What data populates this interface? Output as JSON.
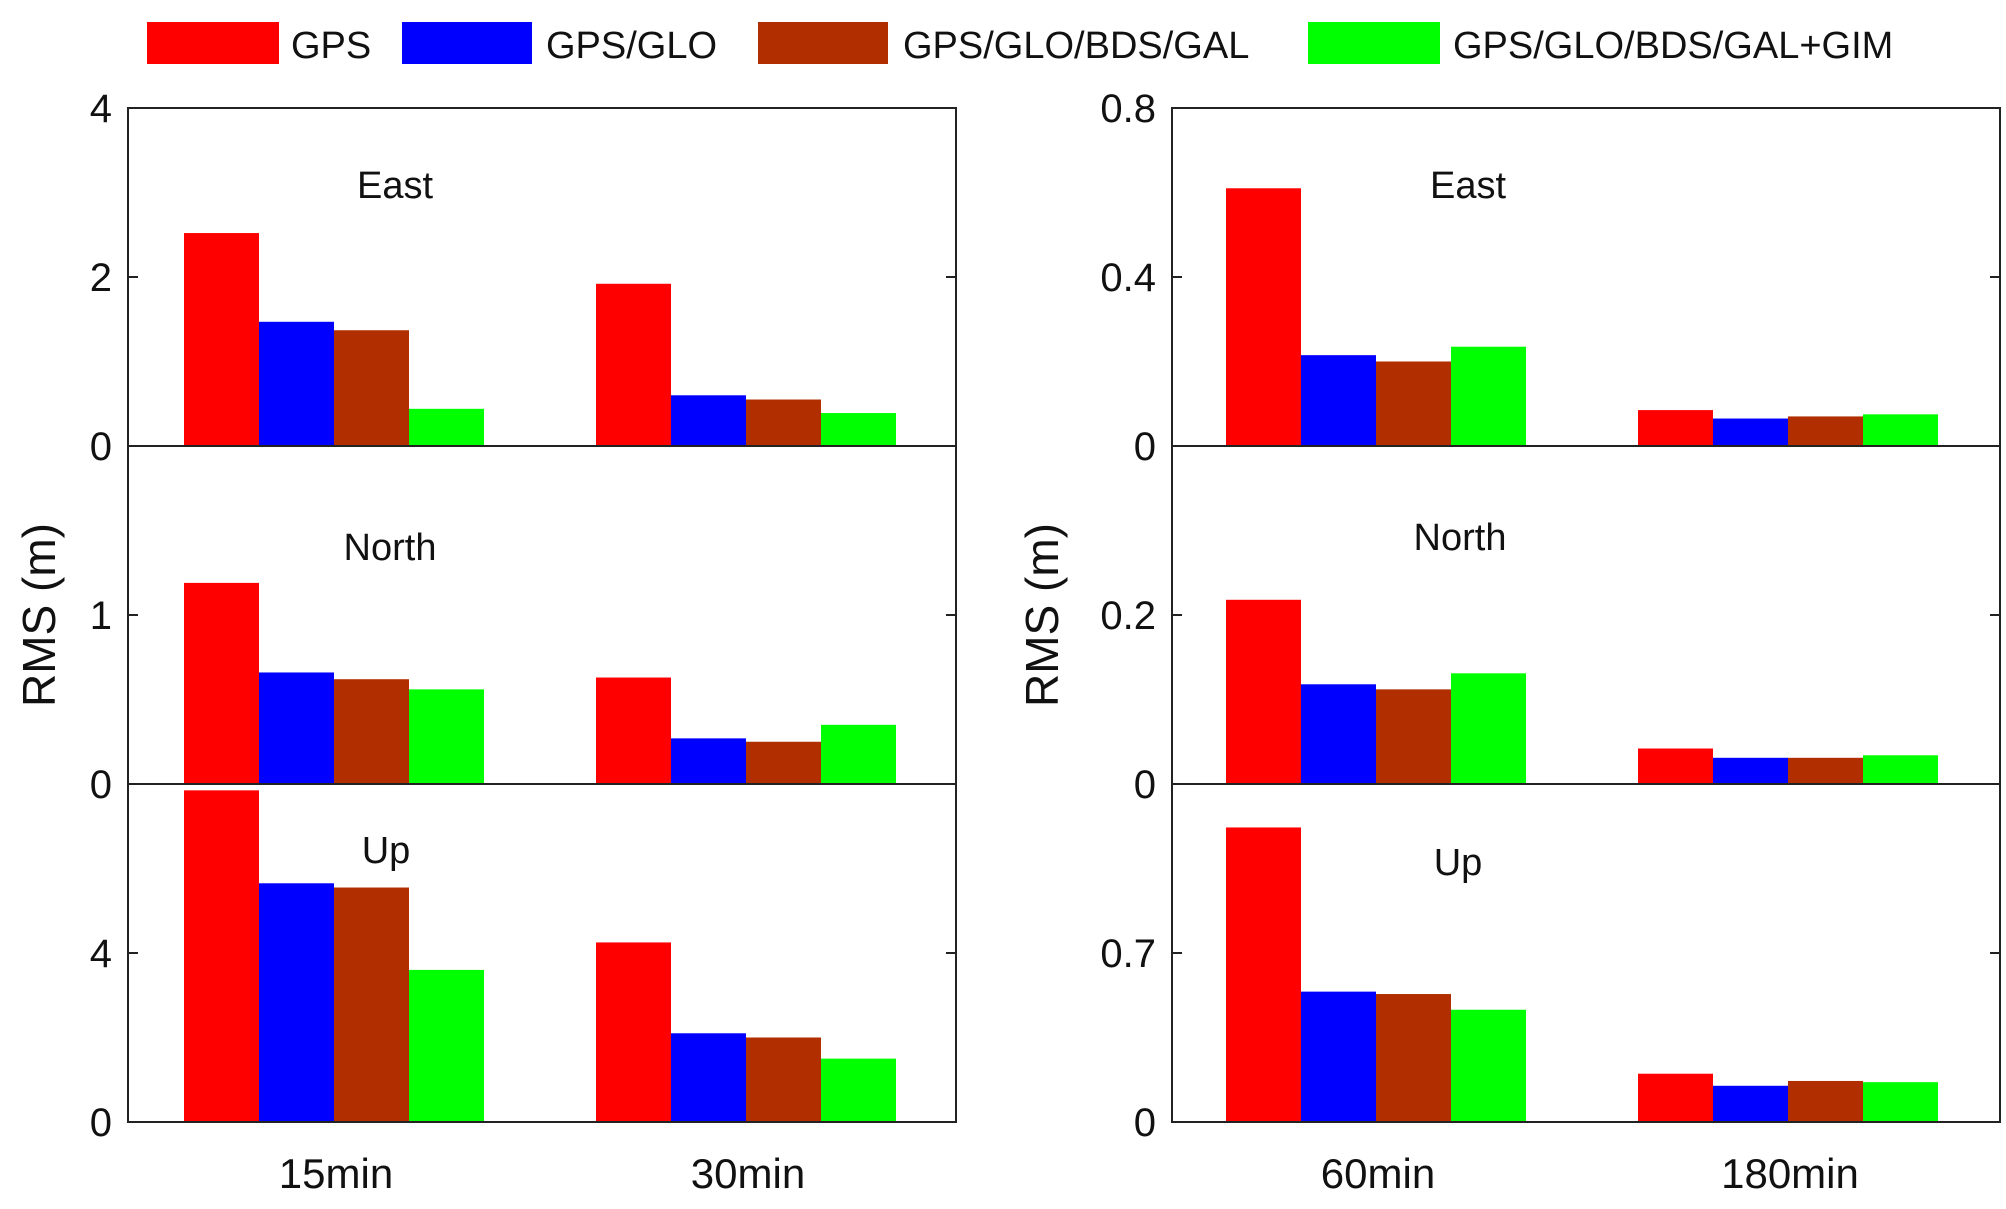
{
  "legend": {
    "items": [
      {
        "label": "GPS",
        "color": "#ff0000"
      },
      {
        "label": "GPS/GLO",
        "color": "#0000ff"
      },
      {
        "label": "GPS/GLO/BDS/GAL",
        "color": "#b02e00"
      },
      {
        "label": "GPS/GLO/BDS/GAL+GIM",
        "color": "#00ff00"
      }
    ]
  },
  "chart_data": [
    {
      "type": "bar",
      "categories": [
        "15min",
        "30min"
      ],
      "ylabel": "RMS (m)",
      "panels": [
        {
          "title": "East",
          "ylim": [
            0,
            4
          ],
          "yticks": [
            {
              "value": 0,
              "label": "0"
            },
            {
              "value": 2,
              "label": "2"
            },
            {
              "value": 4,
              "label": "4"
            }
          ],
          "series": [
            {
              "name": "GPS",
              "values": [
                2.52,
                1.92
              ]
            },
            {
              "name": "GPS/GLO",
              "values": [
                1.47,
                0.6
              ]
            },
            {
              "name": "GPS/GLO/BDS/GAL",
              "values": [
                1.37,
                0.55
              ]
            },
            {
              "name": "GPS/GLO/BDS/GAL+GIM",
              "values": [
                0.44,
                0.39
              ]
            }
          ]
        },
        {
          "title": "North",
          "ylim": [
            0,
            2
          ],
          "yticks": [
            {
              "value": 0,
              "label": "0"
            },
            {
              "value": 1,
              "label": "1"
            }
          ],
          "series": [
            {
              "name": "GPS",
              "values": [
                1.19,
                0.63
              ]
            },
            {
              "name": "GPS/GLO",
              "values": [
                0.66,
                0.27
              ]
            },
            {
              "name": "GPS/GLO/BDS/GAL",
              "values": [
                0.62,
                0.25
              ]
            },
            {
              "name": "GPS/GLO/BDS/GAL+GIM",
              "values": [
                0.56,
                0.35
              ]
            }
          ]
        },
        {
          "title": "Up",
          "ylim": [
            0,
            8
          ],
          "yticks": [
            {
              "value": 0,
              "label": "0"
            },
            {
              "value": 4,
              "label": "4"
            }
          ],
          "series": [
            {
              "name": "GPS",
              "values": [
                7.85,
                4.25
              ]
            },
            {
              "name": "GPS/GLO",
              "values": [
                5.65,
                2.1
              ]
            },
            {
              "name": "GPS/GLO/BDS/GAL",
              "values": [
                5.55,
                2.0
              ]
            },
            {
              "name": "GPS/GLO/BDS/GAL+GIM",
              "values": [
                3.6,
                1.5
              ]
            }
          ]
        }
      ]
    },
    {
      "type": "bar",
      "categories": [
        "60min",
        "180min"
      ],
      "ylabel": "RMS (m)",
      "panels": [
        {
          "title": "East",
          "ylim": [
            0,
            0.8
          ],
          "yticks": [
            {
              "value": 0,
              "label": "0"
            },
            {
              "value": 0.4,
              "label": "0.4"
            },
            {
              "value": 0.8,
              "label": "0.8"
            }
          ],
          "series": [
            {
              "name": "GPS",
              "values": [
                0.61,
                0.085
              ]
            },
            {
              "name": "GPS/GLO",
              "values": [
                0.215,
                0.065
              ]
            },
            {
              "name": "GPS/GLO/BDS/GAL",
              "values": [
                0.2,
                0.07
              ]
            },
            {
              "name": "GPS/GLO/BDS/GAL+GIM",
              "values": [
                0.235,
                0.075
              ]
            }
          ]
        },
        {
          "title": "North",
          "ylim": [
            0,
            0.4
          ],
          "yticks": [
            {
              "value": 0,
              "label": "0"
            },
            {
              "value": 0.2,
              "label": "0.2"
            }
          ],
          "series": [
            {
              "name": "GPS",
              "values": [
                0.218,
                0.042
              ]
            },
            {
              "name": "GPS/GLO",
              "values": [
                0.118,
                0.031
              ]
            },
            {
              "name": "GPS/GLO/BDS/GAL",
              "values": [
                0.112,
                0.031
              ]
            },
            {
              "name": "GPS/GLO/BDS/GAL+GIM",
              "values": [
                0.131,
                0.034
              ]
            }
          ]
        },
        {
          "title": "Up",
          "ylim": [
            0,
            1.4
          ],
          "yticks": [
            {
              "value": 0,
              "label": "0"
            },
            {
              "value": 0.7,
              "label": "0.7"
            }
          ],
          "series": [
            {
              "name": "GPS",
              "values": [
                1.22,
                0.2
              ]
            },
            {
              "name": "GPS/GLO",
              "values": [
                0.54,
                0.15
              ]
            },
            {
              "name": "GPS/GLO/BDS/GAL",
              "values": [
                0.53,
                0.17
              ]
            },
            {
              "name": "GPS/GLO/BDS/GAL+GIM",
              "values": [
                0.465,
                0.165
              ]
            }
          ]
        }
      ]
    }
  ]
}
